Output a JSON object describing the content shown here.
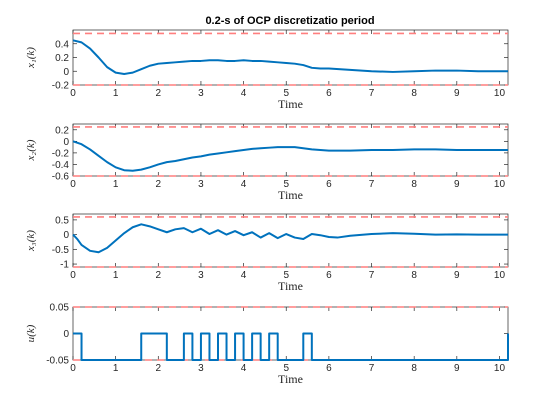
{
  "colors": {
    "series": "#0072BD",
    "bound": "#FF7F7F",
    "axis": "#262626",
    "background": "#ffffff"
  },
  "chart_data": [
    {
      "type": "line",
      "title": "0.2-s of OCP discretizatio period",
      "xlabel": "Time",
      "ylabel": "x₁(k)",
      "xlim": [
        0,
        10.2
      ],
      "ylim": [
        -0.2,
        0.6
      ],
      "xticks": [
        0,
        1,
        2,
        3,
        4,
        5,
        6,
        7,
        8,
        9,
        10
      ],
      "xtick_labels": [
        "0",
        "1",
        "2",
        "3",
        "4",
        "5",
        "6",
        "7",
        "8",
        "9",
        "10"
      ],
      "yticks": [
        -0.2,
        0,
        0.2,
        0.4
      ],
      "ytick_labels": [
        "-0.2",
        "0",
        "0.2",
        "0.4"
      ],
      "bounds": [
        0.55,
        -0.2
      ],
      "grid": false,
      "series": [
        {
          "x": [
            0,
            0.2,
            0.4,
            0.6,
            0.8,
            1.0,
            1.2,
            1.4,
            1.6,
            1.8,
            2.0,
            2.2,
            2.4,
            2.6,
            2.8,
            3.0,
            3.2,
            3.4,
            3.6,
            3.8,
            4.0,
            4.2,
            4.4,
            4.6,
            4.8,
            5.0,
            5.2,
            5.4,
            5.6,
            5.8,
            6.0,
            6.5,
            7.0,
            7.5,
            8.0,
            8.5,
            9.0,
            9.5,
            10.0,
            10.2
          ],
          "values": [
            0.45,
            0.42,
            0.33,
            0.2,
            0.06,
            -0.02,
            -0.04,
            -0.02,
            0.03,
            0.08,
            0.11,
            0.12,
            0.13,
            0.14,
            0.15,
            0.15,
            0.16,
            0.16,
            0.15,
            0.15,
            0.16,
            0.15,
            0.15,
            0.14,
            0.13,
            0.12,
            0.11,
            0.09,
            0.05,
            0.04,
            0.04,
            0.02,
            0.0,
            -0.01,
            0.0,
            0.01,
            0.01,
            0.0,
            0.0,
            0.0
          ]
        }
      ]
    },
    {
      "type": "line",
      "xlabel": "Time",
      "ylabel": "x₂(k)",
      "xlim": [
        0,
        10.2
      ],
      "ylim": [
        -0.6,
        0.3
      ],
      "xticks": [
        0,
        1,
        2,
        3,
        4,
        5,
        6,
        7,
        8,
        9,
        10
      ],
      "xtick_labels": [
        "0",
        "1",
        "2",
        "3",
        "4",
        "5",
        "6",
        "7",
        "8",
        "9",
        "10"
      ],
      "yticks": [
        -0.6,
        -0.4,
        -0.2,
        0,
        0.2
      ],
      "ytick_labels": [
        "-0.6",
        "-0.4",
        "-0.2",
        "0",
        "0.2"
      ],
      "bounds": [
        0.25,
        -0.6
      ],
      "grid": false,
      "series": [
        {
          "x": [
            0,
            0.2,
            0.4,
            0.6,
            0.8,
            1.0,
            1.2,
            1.4,
            1.6,
            1.8,
            2.0,
            2.2,
            2.4,
            2.6,
            2.8,
            3.0,
            3.2,
            3.4,
            3.6,
            3.8,
            4.0,
            4.2,
            4.4,
            4.6,
            4.8,
            5.0,
            5.2,
            5.4,
            5.6,
            5.8,
            6.0,
            6.5,
            7.0,
            7.5,
            8.0,
            8.5,
            9.0,
            9.5,
            10.0,
            10.2
          ],
          "values": [
            0.0,
            -0.05,
            -0.14,
            -0.25,
            -0.36,
            -0.45,
            -0.5,
            -0.51,
            -0.49,
            -0.45,
            -0.4,
            -0.36,
            -0.34,
            -0.31,
            -0.28,
            -0.26,
            -0.23,
            -0.21,
            -0.19,
            -0.17,
            -0.15,
            -0.13,
            -0.12,
            -0.11,
            -0.1,
            -0.1,
            -0.1,
            -0.12,
            -0.14,
            -0.15,
            -0.16,
            -0.16,
            -0.15,
            -0.15,
            -0.14,
            -0.14,
            -0.15,
            -0.15,
            -0.15,
            -0.15
          ]
        }
      ]
    },
    {
      "type": "line",
      "xlabel": "Time",
      "ylabel": "x₃(k)",
      "xlim": [
        0,
        10.2
      ],
      "ylim": [
        -1.1,
        0.7
      ],
      "xticks": [
        0,
        1,
        2,
        3,
        4,
        5,
        6,
        7,
        8,
        9,
        10
      ],
      "xtick_labels": [
        "0",
        "1",
        "2",
        "3",
        "4",
        "5",
        "6",
        "7",
        "8",
        "9",
        "10"
      ],
      "yticks": [
        -1,
        -0.5,
        0,
        0.5
      ],
      "ytick_labels": [
        "-1",
        "-0.5",
        "0",
        "0.5"
      ],
      "bounds": [
        0.6,
        -1.1
      ],
      "grid": false,
      "series": [
        {
          "x": [
            0,
            0.1,
            0.2,
            0.4,
            0.6,
            0.8,
            1.0,
            1.2,
            1.4,
            1.6,
            1.8,
            2.0,
            2.2,
            2.4,
            2.6,
            2.8,
            3.0,
            3.2,
            3.4,
            3.6,
            3.8,
            4.0,
            4.2,
            4.4,
            4.6,
            4.8,
            5.0,
            5.2,
            5.4,
            5.6,
            5.8,
            6.0,
            6.2,
            6.5,
            7.0,
            7.5,
            8.0,
            8.5,
            9.0,
            9.5,
            10.0,
            10.2
          ],
          "values": [
            0.0,
            -0.15,
            -0.35,
            -0.55,
            -0.6,
            -0.45,
            -0.2,
            0.05,
            0.25,
            0.35,
            0.28,
            0.18,
            0.08,
            0.18,
            0.22,
            0.08,
            0.2,
            0.02,
            0.15,
            0.0,
            0.12,
            -0.02,
            0.08,
            -0.1,
            0.05,
            -0.12,
            0.02,
            -0.1,
            -0.15,
            0.02,
            -0.02,
            -0.08,
            -0.1,
            -0.04,
            0.02,
            0.05,
            0.03,
            0.0,
            0.01,
            0.0,
            0.0,
            0.0
          ]
        }
      ]
    },
    {
      "type": "line",
      "xlabel": "Time",
      "ylabel": "u(k)",
      "xlim": [
        0,
        10.2
      ],
      "ylim": [
        -0.05,
        0.05
      ],
      "xticks": [
        0,
        1,
        2,
        3,
        4,
        5,
        6,
        7,
        8,
        9,
        10
      ],
      "xtick_labels": [
        "0",
        "1",
        "2",
        "3",
        "4",
        "5",
        "6",
        "7",
        "8",
        "9",
        "10"
      ],
      "yticks": [
        -0.05,
        0,
        0.05
      ],
      "ytick_labels": [
        "-0.05",
        "0",
        "0.05"
      ],
      "bounds": [
        0.05,
        -0.05
      ],
      "grid": false,
      "series": [
        {
          "step": true,
          "x": [
            0,
            0.2,
            1.6,
            2.2,
            2.6,
            2.8,
            3.0,
            3.2,
            3.4,
            3.6,
            3.8,
            4.0,
            4.2,
            4.4,
            4.6,
            4.8,
            5.4,
            5.6,
            10.2
          ],
          "values": [
            0,
            -0.05,
            0,
            -0.05,
            0,
            -0.05,
            0,
            -0.05,
            0,
            -0.05,
            0,
            -0.05,
            0,
            -0.05,
            0,
            -0.05,
            0,
            -0.05,
            0
          ]
        }
      ]
    }
  ]
}
